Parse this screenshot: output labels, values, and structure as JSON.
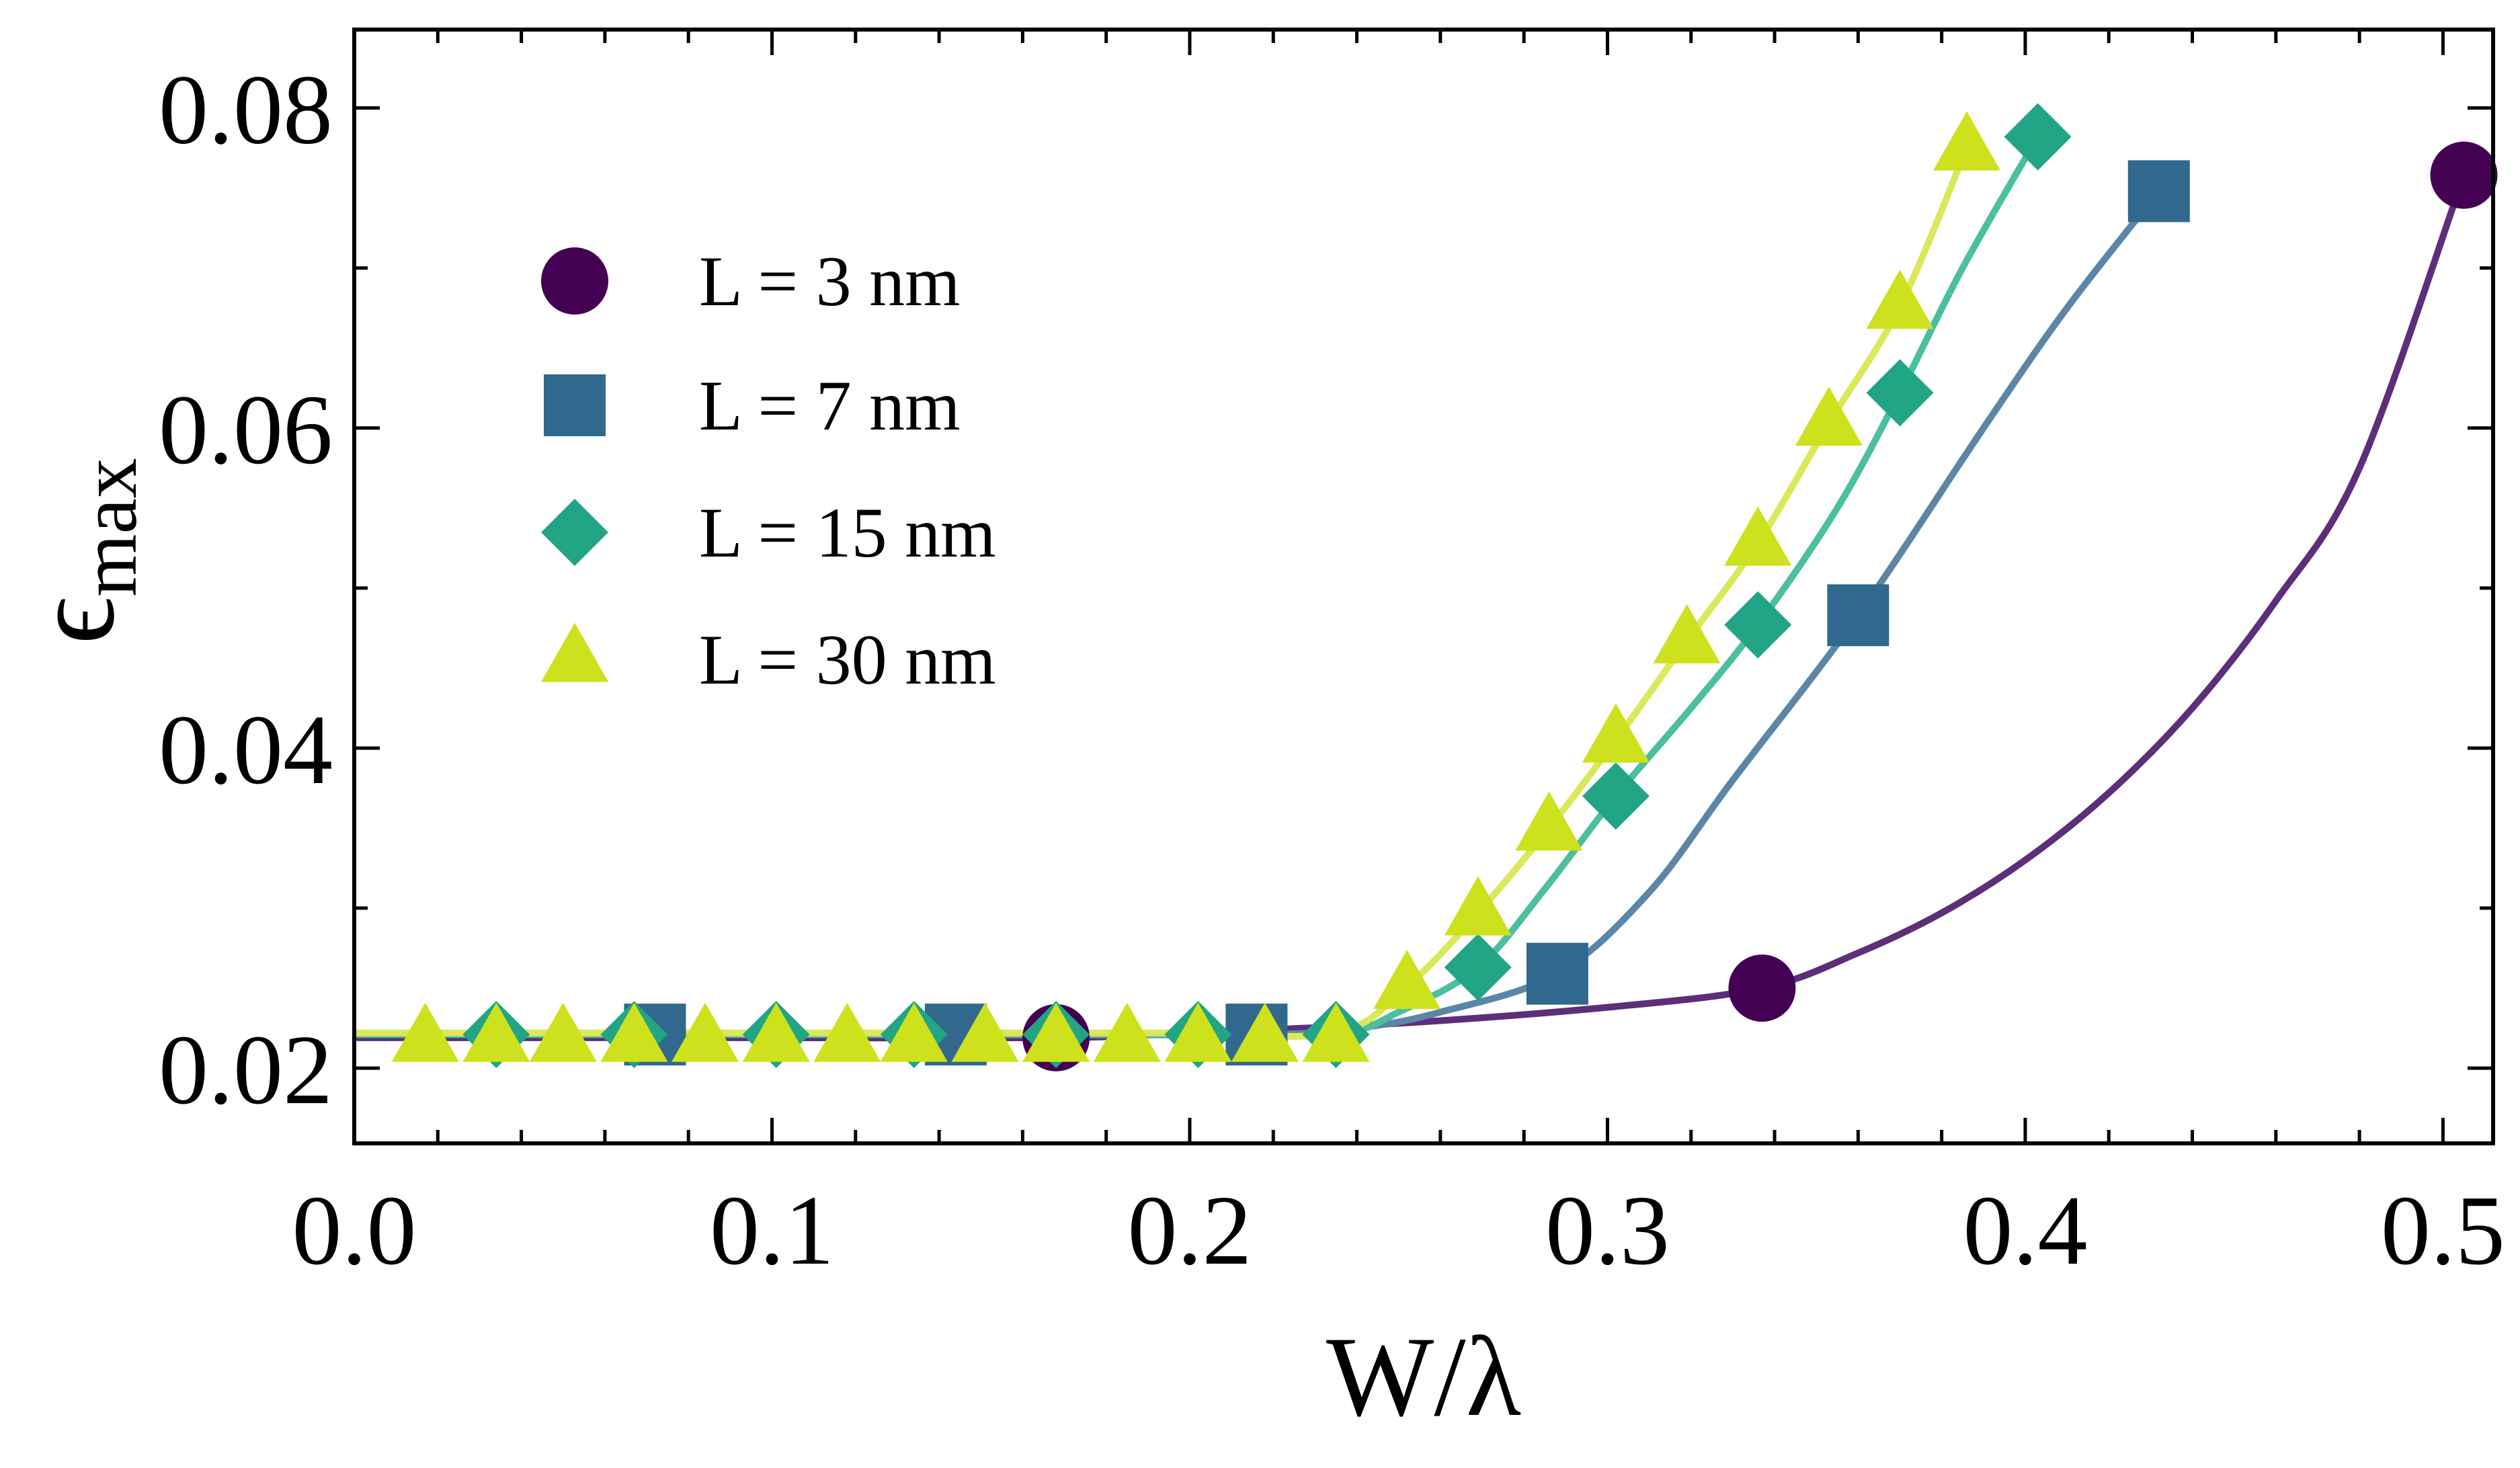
{
  "chart_data": {
    "type": "scatter",
    "title": "",
    "xlabel": "W/λ",
    "ylabel_symbol": "ϵ",
    "ylabel_subscript": "max",
    "xlim": [
      0.0,
      0.512
    ],
    "ylim": [
      0.0153,
      0.0849
    ],
    "x_ticks": [
      0.0,
      0.1,
      0.2,
      0.3,
      0.4,
      0.5
    ],
    "x_tick_labels": [
      "0.0",
      "0.1",
      "0.2",
      "0.3",
      "0.4",
      "0.5"
    ],
    "x_minor_step": 0.02,
    "y_ticks": [
      0.02,
      0.04,
      0.06,
      0.08
    ],
    "y_tick_labels": [
      "0.02",
      "0.04",
      "0.06",
      "0.08"
    ],
    "y_minor_step": 0.01,
    "grid": false,
    "legend_position": "top-left",
    "series": [
      {
        "name": "L = 3 nm",
        "marker": "circle",
        "marker_color": "#440154",
        "line_color": "#5d2e7a",
        "x": [
          0.168,
          0.337,
          0.505
        ],
        "y": [
          0.0219,
          0.025,
          0.0758
        ],
        "curve_x": [
          0.0,
          0.05,
          0.1,
          0.168,
          0.2,
          0.25,
          0.3,
          0.337,
          0.36,
          0.38,
          0.4,
          0.42,
          0.44,
          0.46,
          0.48,
          0.505
        ],
        "curve_y": [
          0.0219,
          0.0219,
          0.0219,
          0.0219,
          0.0222,
          0.0228,
          0.0238,
          0.025,
          0.0272,
          0.0297,
          0.033,
          0.0372,
          0.0425,
          0.0492,
          0.0575,
          0.0758
        ]
      },
      {
        "name": "L = 7 nm",
        "marker": "square",
        "marker_color": "#31688e",
        "line_color": "#5b86a7",
        "x": [
          0.072,
          0.144,
          0.216,
          0.288,
          0.36,
          0.432
        ],
        "y": [
          0.0221,
          0.0221,
          0.0221,
          0.0259,
          0.0483,
          0.0748
        ],
        "curve_x": [
          0.0,
          0.072,
          0.144,
          0.216,
          0.24,
          0.26,
          0.288,
          0.31,
          0.33,
          0.36,
          0.39,
          0.41,
          0.432
        ],
        "curve_y": [
          0.0221,
          0.0221,
          0.0221,
          0.0221,
          0.0225,
          0.0235,
          0.0259,
          0.031,
          0.038,
          0.0483,
          0.06,
          0.0675,
          0.0748
        ]
      },
      {
        "name": "L = 15 nm",
        "marker": "diamond",
        "marker_color": "#21a585",
        "line_color": "#4bbf9f",
        "x": [
          0.034,
          0.067,
          0.101,
          0.134,
          0.168,
          0.202,
          0.235,
          0.269,
          0.302,
          0.336,
          0.37,
          0.403
        ],
        "y": [
          0.0221,
          0.0221,
          0.0221,
          0.0221,
          0.0221,
          0.0221,
          0.0221,
          0.0263,
          0.037,
          0.0477,
          0.0622,
          0.0782
        ],
        "curve_x": [
          0.0,
          0.034,
          0.067,
          0.101,
          0.134,
          0.168,
          0.202,
          0.235,
          0.25,
          0.269,
          0.285,
          0.302,
          0.32,
          0.336,
          0.355,
          0.37,
          0.385,
          0.403
        ],
        "curve_y": [
          0.0221,
          0.0221,
          0.0221,
          0.0221,
          0.0221,
          0.0221,
          0.0221,
          0.0221,
          0.0235,
          0.0263,
          0.0312,
          0.037,
          0.0425,
          0.0477,
          0.055,
          0.0622,
          0.07,
          0.0782
        ]
      },
      {
        "name": "L = 30 nm",
        "marker": "triangle",
        "marker_color": "#cde11d",
        "line_color": "#dbe85a",
        "x": [
          0.017,
          0.034,
          0.05,
          0.067,
          0.084,
          0.101,
          0.118,
          0.134,
          0.151,
          0.168,
          0.185,
          0.202,
          0.218,
          0.235,
          0.252,
          0.269,
          0.286,
          0.302,
          0.319,
          0.336,
          0.353,
          0.37,
          0.386
        ],
        "y": [
          0.0218,
          0.0218,
          0.0218,
          0.0218,
          0.0218,
          0.0218,
          0.0218,
          0.0218,
          0.0218,
          0.0218,
          0.0218,
          0.0218,
          0.0218,
          0.0218,
          0.0251,
          0.0297,
          0.035,
          0.0405,
          0.0467,
          0.0528,
          0.0603,
          0.0676,
          0.0775
        ],
        "curve_x": [
          0.0,
          0.017,
          0.05,
          0.1,
          0.15,
          0.2,
          0.235,
          0.252,
          0.269,
          0.286,
          0.302,
          0.319,
          0.336,
          0.353,
          0.37,
          0.386
        ],
        "curve_y": [
          0.0222,
          0.0222,
          0.0222,
          0.0222,
          0.0222,
          0.0222,
          0.0222,
          0.0251,
          0.0297,
          0.035,
          0.0405,
          0.0467,
          0.0528,
          0.0603,
          0.0676,
          0.0775
        ]
      }
    ]
  }
}
